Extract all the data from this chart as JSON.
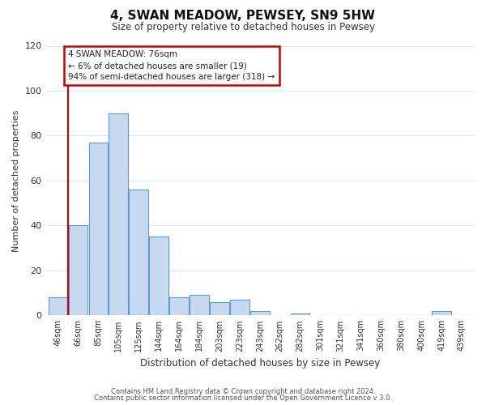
{
  "title": "4, SWAN MEADOW, PEWSEY, SN9 5HW",
  "subtitle": "Size of property relative to detached houses in Pewsey",
  "xlabel": "Distribution of detached houses by size in Pewsey",
  "ylabel": "Number of detached properties",
  "bar_labels": [
    "46sqm",
    "66sqm",
    "85sqm",
    "105sqm",
    "125sqm",
    "144sqm",
    "164sqm",
    "184sqm",
    "203sqm",
    "223sqm",
    "243sqm",
    "262sqm",
    "282sqm",
    "301sqm",
    "321sqm",
    "341sqm",
    "360sqm",
    "380sqm",
    "400sqm",
    "419sqm",
    "439sqm"
  ],
  "bar_values": [
    8,
    40,
    77,
    90,
    56,
    35,
    8,
    9,
    6,
    7,
    2,
    0,
    1,
    0,
    0,
    0,
    0,
    0,
    0,
    2,
    0
  ],
  "bar_color": "#c6d9f0",
  "bar_edge_color": "#5b9bd5",
  "highlight_bar_index": 1,
  "highlight_color": "#cc0000",
  "ylim": [
    0,
    120
  ],
  "yticks": [
    0,
    20,
    40,
    60,
    80,
    100,
    120
  ],
  "annotation_title": "4 SWAN MEADOW: 76sqm",
  "annotation_line1": "← 6% of detached houses are smaller (19)",
  "annotation_line2": "94% of semi-detached houses are larger (318) →",
  "annotation_box_color": "#ffffff",
  "annotation_box_edge": "#cc0000",
  "footer_line1": "Contains HM Land Registry data © Crown copyright and database right 2024.",
  "footer_line2": "Contains public sector information licensed under the Open Government Licence v 3.0.",
  "background_color": "#ffffff",
  "grid_color": "#dce6f1"
}
